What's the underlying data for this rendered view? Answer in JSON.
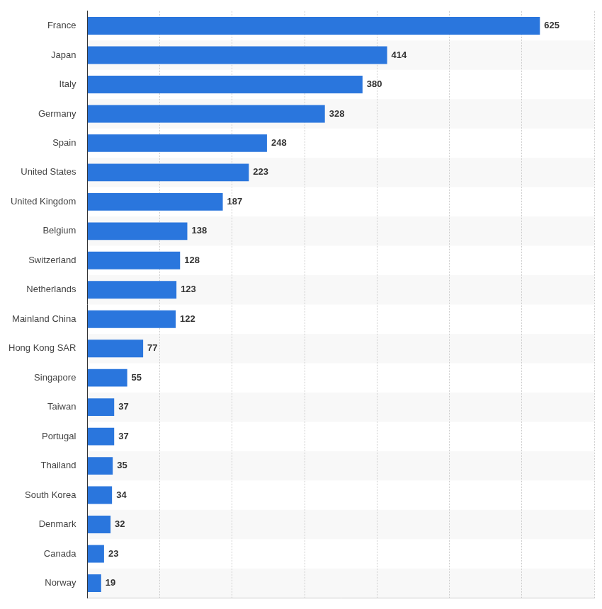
{
  "chart_data": {
    "type": "bar",
    "orientation": "horizontal",
    "categories": [
      "France",
      "Japan",
      "Italy",
      "Germany",
      "Spain",
      "United States",
      "United Kingdom",
      "Belgium",
      "Switzerland",
      "Netherlands",
      "Mainland China",
      "Hong Kong SAR",
      "Singapore",
      "Taiwan",
      "Portugal",
      "Thailand",
      "South Korea",
      "Denmark",
      "Canada",
      "Norway"
    ],
    "values": [
      625,
      414,
      380,
      328,
      248,
      223,
      187,
      138,
      128,
      123,
      122,
      77,
      55,
      37,
      37,
      35,
      34,
      32,
      23,
      19
    ],
    "color": "#2a76dd",
    "xlim": [
      0,
      700
    ],
    "xticks": [
      0,
      100,
      200,
      300,
      400,
      500,
      600,
      700
    ],
    "grid": true,
    "data_labels": true,
    "tick_labels": "y"
  }
}
